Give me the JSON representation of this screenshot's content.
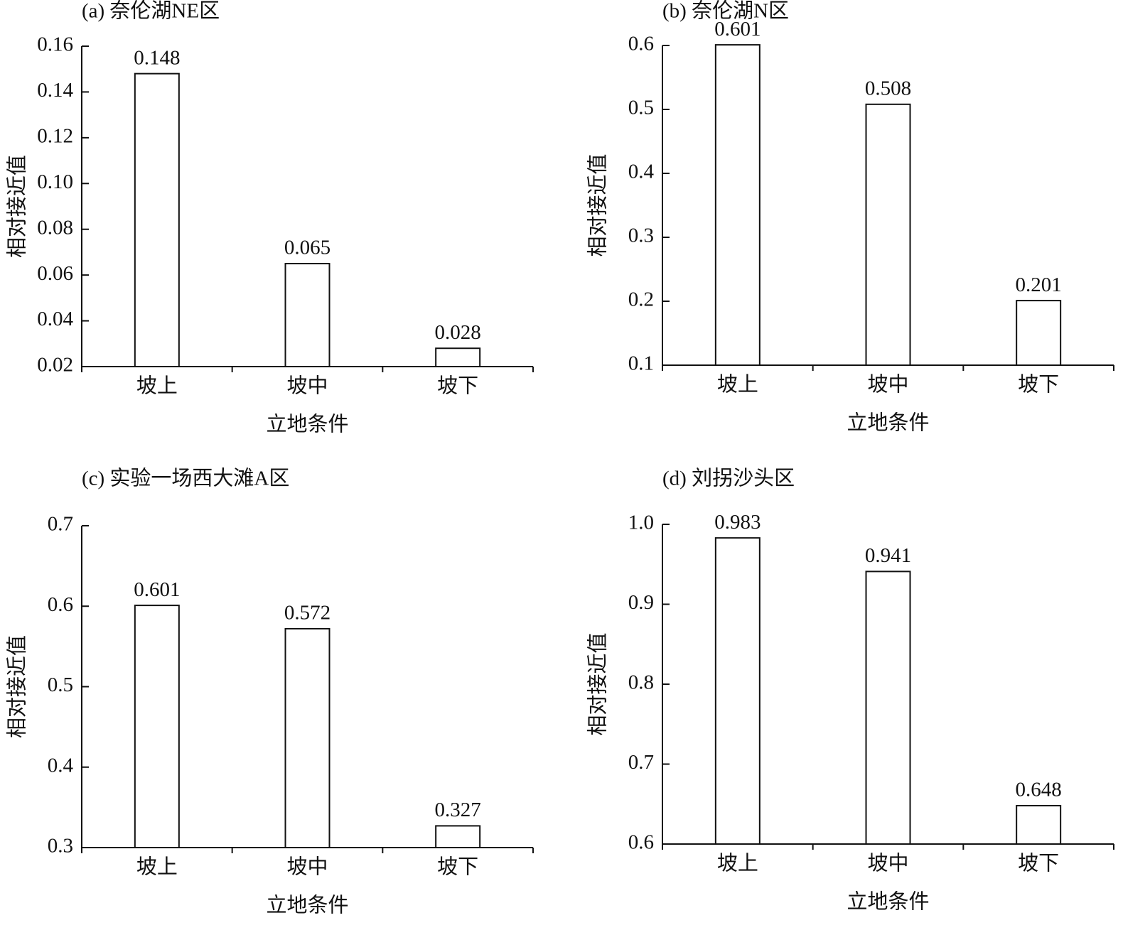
{
  "chart_data": [
    {
      "type": "bar",
      "title": "(a) 奈伦湖NE区",
      "xlabel": "立地条件",
      "ylabel": "相对接近值",
      "categories": [
        "坡上",
        "坡中",
        "坡下"
      ],
      "values": [
        0.148,
        0.065,
        0.028
      ],
      "color": "#ffffff",
      "ylim": [
        0.02,
        0.16
      ],
      "yticks": [
        0.02,
        0.04,
        0.06,
        0.08,
        {
          "value": 0.1,
          "label": "0.10"
        },
        0.12,
        0.14,
        0.16
      ]
    },
    {
      "type": "bar",
      "title": "(b) 奈伦湖N区",
      "xlabel": "立地条件",
      "ylabel": "相对接近值",
      "categories": [
        "坡上",
        "坡中",
        "坡下"
      ],
      "values": [
        0.601,
        0.508,
        0.201
      ],
      "color": "#ffffff",
      "ylim": [
        0.1,
        0.6
      ],
      "yticks": [
        0.1,
        0.2,
        0.3,
        0.4,
        0.5,
        0.6
      ]
    },
    {
      "type": "bar",
      "title": "(c) 实验一场西大滩A区",
      "xlabel": "立地条件",
      "ylabel": "相对接近值",
      "categories": [
        "坡上",
        "坡中",
        "坡下"
      ],
      "values": [
        0.601,
        0.572,
        0.327
      ],
      "color": "#ffffff",
      "ylim": [
        0.3,
        0.7
      ],
      "yticks": [
        0.3,
        0.4,
        0.5,
        0.6,
        0.7
      ]
    },
    {
      "type": "bar",
      "title": "(d) 刘拐沙头区",
      "xlabel": "立地条件",
      "ylabel": "相对接近值",
      "categories": [
        "坡上",
        "坡中",
        "坡下"
      ],
      "values": [
        0.983,
        0.941,
        0.648
      ],
      "color": "#ffffff",
      "ylim": [
        0.6,
        1.0
      ],
      "yticks": [
        0.6,
        0.7,
        0.8,
        0.9,
        {
          "value": 1.0,
          "label": "1.0"
        }
      ]
    }
  ]
}
